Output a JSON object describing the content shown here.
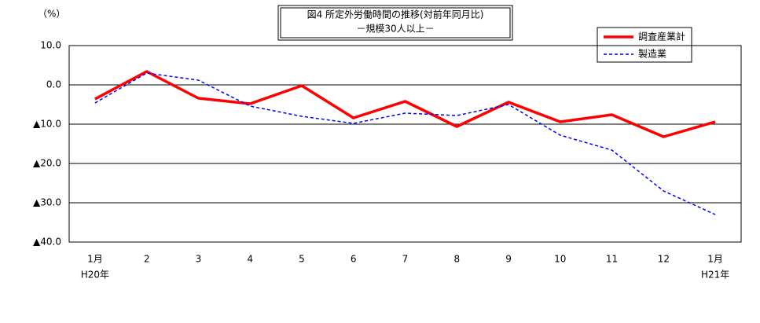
{
  "chart_data": {
    "type": "line",
    "title": "図4 所定外労働時間の推移(対前年同月比)",
    "subtitle": "－規模30人以上－",
    "y_unit": "（%）",
    "categories": [
      "1月",
      "2",
      "3",
      "4",
      "5",
      "6",
      "7",
      "8",
      "9",
      "10",
      "11",
      "12",
      "1月"
    ],
    "category_sublabels": [
      "H20年",
      null,
      null,
      null,
      null,
      null,
      null,
      null,
      null,
      null,
      null,
      null,
      "H21年"
    ],
    "series": [
      {
        "name": "調査産業計",
        "color": "#ff0000",
        "linestyle": "solid",
        "width": 3.5,
        "values": [
          -3.6,
          3.4,
          -3.4,
          -4.8,
          -0.2,
          -8.4,
          -4.2,
          -10.6,
          -4.4,
          -9.4,
          -7.6,
          -13.2,
          -9.4
        ]
      },
      {
        "name": "製造業",
        "color": "#0000ff",
        "linestyle": "dashed",
        "width": 1.5,
        "values": [
          -4.6,
          3.0,
          1.2,
          -5.4,
          -8.0,
          -9.8,
          -7.2,
          -7.8,
          -5.0,
          -12.8,
          -16.6,
          -27.0,
          -33.0
        ]
      }
    ],
    "ylim": [
      -40,
      10
    ],
    "yticks": [
      {
        "value": 10,
        "label": "10.0"
      },
      {
        "value": 0,
        "label": "0.0"
      },
      {
        "value": -10,
        "label": "▲10.0"
      },
      {
        "value": -20,
        "label": "▲20.0"
      },
      {
        "value": -30,
        "label": "▲30.0"
      },
      {
        "value": -40,
        "label": "▲40.0"
      }
    ],
    "grid": true
  }
}
